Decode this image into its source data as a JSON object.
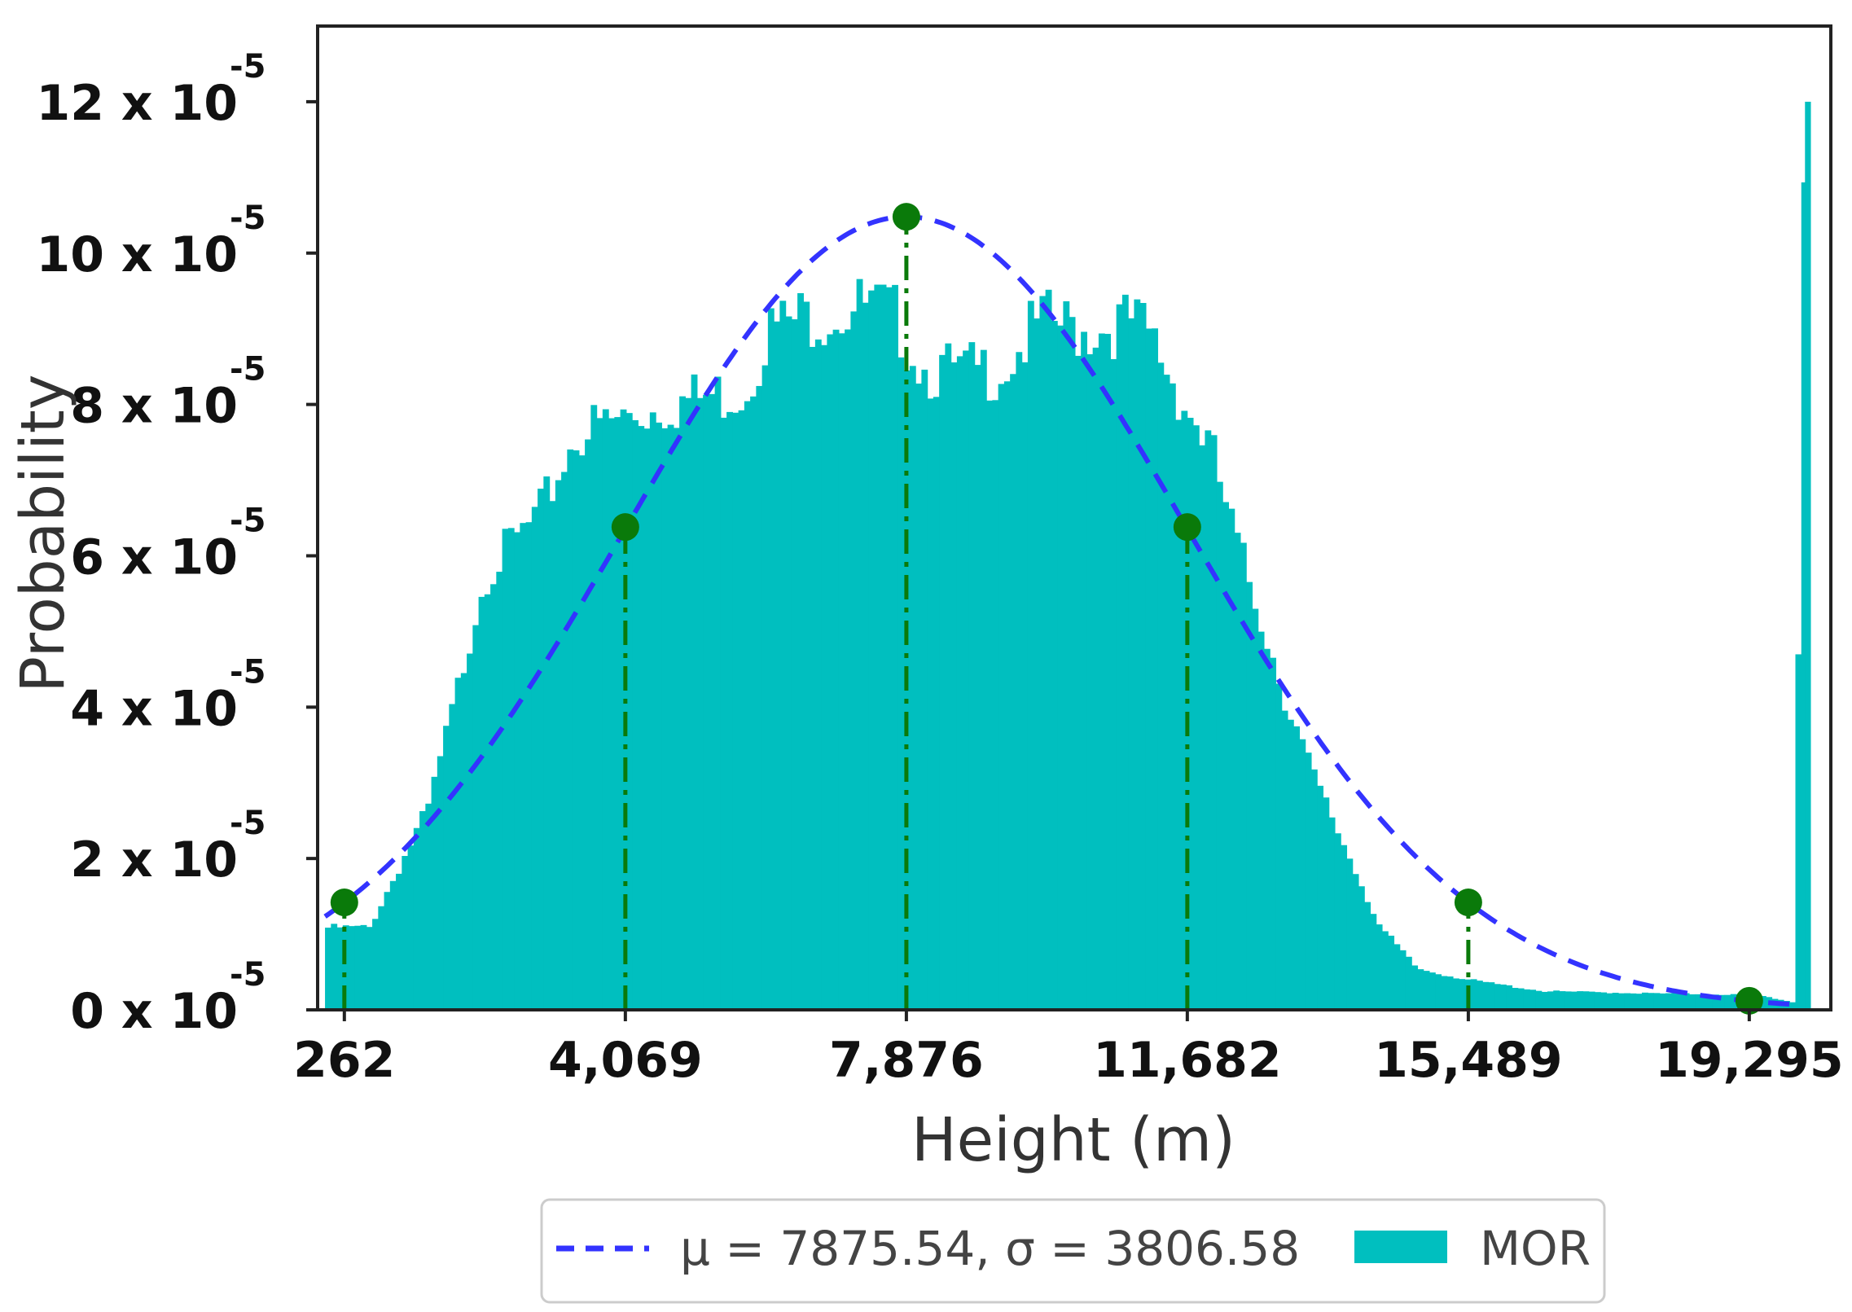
{
  "chart_data": {
    "type": "bar",
    "title": "",
    "xlabel": "Height (m)",
    "ylabel": "Probability",
    "xlim": [
      -100,
      20400
    ],
    "ylim": [
      0,
      0.00013
    ],
    "x_ticks": [
      {
        "value": 262,
        "label": "262"
      },
      {
        "value": 4069,
        "label": "4,069"
      },
      {
        "value": 7876,
        "label": "7,876"
      },
      {
        "value": 11682,
        "label": "11,682"
      },
      {
        "value": 15489,
        "label": "15,489"
      },
      {
        "value": 19295,
        "label": "19,295"
      }
    ],
    "y_ticks": [
      {
        "value": 0,
        "label": "0 x 10",
        "exp": "-5"
      },
      {
        "value": 2e-05,
        "label": "2 x 10",
        "exp": "-5"
      },
      {
        "value": 4e-05,
        "label": "4 x 10",
        "exp": "-5"
      },
      {
        "value": 6e-05,
        "label": "6 x 10",
        "exp": "-5"
      },
      {
        "value": 8e-05,
        "label": "8 x 10",
        "exp": "-5"
      },
      {
        "value": 0.0001,
        "label": "10 x 10",
        "exp": "-5"
      },
      {
        "value": 0.00012,
        "label": "12 x 10",
        "exp": "-5"
      }
    ],
    "grid": false,
    "legend_position": "bottom-center",
    "histogram": {
      "name": "MOR",
      "color": "#00BFBF",
      "bin_width": 80,
      "profile": [
        [
          0,
          1.1e-05
        ],
        [
          600,
          1.1e-05
        ],
        [
          950,
          1.8e-05
        ],
        [
          1400,
          2.7e-05
        ],
        [
          1800,
          4.3e-05
        ],
        [
          2150,
          5.8e-05
        ],
        [
          2500,
          6.2e-05
        ],
        [
          2900,
          6.6e-05
        ],
        [
          3400,
          7.7e-05
        ],
        [
          4000,
          7.9e-05
        ],
        [
          4600,
          8.1e-05
        ],
        [
          5200,
          8.2e-05
        ],
        [
          5700,
          8.3e-05
        ],
        [
          6000,
          9.1e-05
        ],
        [
          6600,
          9.3e-05
        ],
        [
          7300,
          9.4e-05
        ],
        [
          7700,
          9.3e-05
        ],
        [
          8100,
          8.6e-05
        ],
        [
          8600,
          8.5e-05
        ],
        [
          9200,
          8.6e-05
        ],
        [
          9700,
          9.2e-05
        ],
        [
          10300,
          9.1e-05
        ],
        [
          10900,
          9.2e-05
        ],
        [
          11200,
          9e-05
        ],
        [
          11600,
          8.2e-05
        ],
        [
          12000,
          7.5e-05
        ],
        [
          12300,
          6.4e-05
        ],
        [
          12700,
          5.2e-05
        ],
        [
          13000,
          4.2e-05
        ],
        [
          13400,
          3.1e-05
        ],
        [
          13900,
          2e-05
        ],
        [
          14300,
          1.1e-05
        ],
        [
          14800,
          5.5e-06
        ],
        [
          15500,
          4e-06
        ],
        [
          16500,
          2.5e-06
        ],
        [
          18000,
          2.2e-06
        ],
        [
          19400,
          2e-06
        ],
        [
          19900,
          1e-06
        ],
        [
          20050,
          0.00012
        ],
        [
          20150,
          0.0
        ]
      ]
    },
    "series": [
      {
        "name": "μ = 7875.54, σ = 3806.58",
        "type": "normal-pdf",
        "mu": 7875.54,
        "sigma": 3806.58,
        "color": "#3333FF",
        "style": "dashed"
      }
    ],
    "markers": {
      "color": "#0A7A0A",
      "x": [
        262,
        4069,
        7876,
        11682,
        15489,
        19295
      ],
      "y": [
        1.42e-05,
        6.38e-05,
        0.0001048,
        6.38e-05,
        1.42e-05,
        1.2e-06
      ],
      "drop_lines": "dash-dot"
    }
  },
  "legend": {
    "items": [
      {
        "label": "μ = 7875.54, σ = 3806.58",
        "kind": "dashed-line",
        "color": "#3333FF"
      },
      {
        "label": "MOR",
        "kind": "patch",
        "color": "#00BFBF"
      }
    ]
  }
}
